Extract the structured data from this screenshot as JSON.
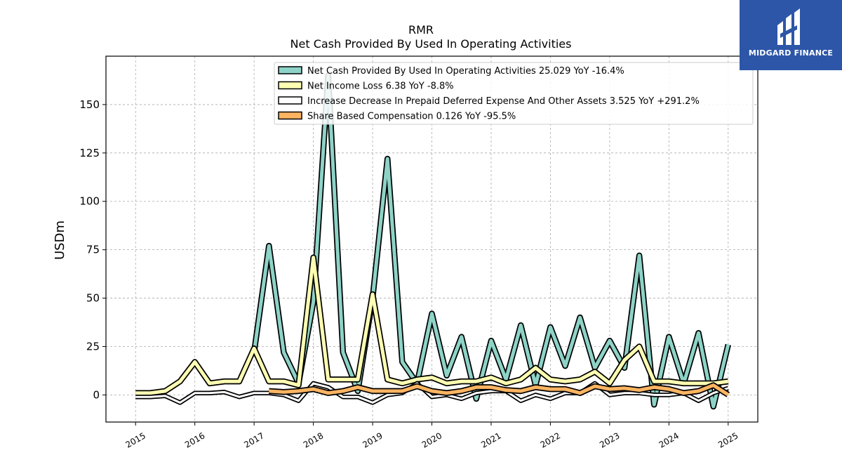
{
  "brand": {
    "name": "MIDGARD FINANCE",
    "color": "#2d56a8"
  },
  "chart_data": {
    "type": "line",
    "title": "RMR",
    "subtitle": "Net Cash Provided By Used In Operating Activities",
    "ylabel": "USDm",
    "xlabel": "",
    "ylim": [
      -14,
      175
    ],
    "xlim": [
      2014.5,
      2025.5
    ],
    "yticks": [
      0,
      25,
      50,
      75,
      100,
      125,
      150
    ],
    "xticks": [
      "2015",
      "2016",
      "2017",
      "2018",
      "2019",
      "2020",
      "2021",
      "2022",
      "2023",
      "2024",
      "2025"
    ],
    "grid": true,
    "legend_position": "top-right",
    "x": [
      2015.0,
      2015.25,
      2015.5,
      2015.75,
      2016.0,
      2016.25,
      2016.5,
      2016.75,
      2017.0,
      2017.25,
      2017.5,
      2017.75,
      2018.0,
      2018.25,
      2018.5,
      2018.75,
      2019.0,
      2019.25,
      2019.5,
      2019.75,
      2020.0,
      2020.25,
      2020.5,
      2020.75,
      2021.0,
      2021.25,
      2021.5,
      2021.75,
      2022.0,
      2022.25,
      2022.5,
      2022.75,
      2023.0,
      2023.25,
      2023.5,
      2023.75,
      2024.0,
      2024.25,
      2024.5,
      2024.75,
      2025.0
    ],
    "series": [
      {
        "name": "Net Cash Provided By Used In Operating Activities",
        "legend": "Net Cash Provided By Used In Operating Activities  25.029 YoY -16.4%",
        "color": "#8dd3c7",
        "lineWidth": 5,
        "values": [
          null,
          null,
          null,
          null,
          null,
          null,
          null,
          null,
          22,
          77,
          22,
          6,
          48,
          165,
          22,
          2,
          50,
          122,
          17,
          6,
          42,
          10,
          30,
          -2,
          28,
          8,
          36,
          5,
          35,
          15,
          40,
          14,
          28,
          14,
          72,
          -5,
          30,
          6,
          32,
          -6,
          26
        ]
      },
      {
        "name": "Net Income Loss",
        "legend": "Net Income Loss  6.38 YoY -8.8%",
        "color": "#ffffb3",
        "lineWidth": 5,
        "values": [
          1,
          1,
          2,
          7,
          17,
          6,
          7,
          7,
          24,
          7,
          7,
          5,
          71,
          8,
          8,
          8,
          52,
          8,
          6,
          8,
          9,
          6,
          7,
          7,
          9,
          6,
          8,
          14,
          8,
          7,
          8,
          12,
          6,
          18,
          25,
          7,
          7,
          6,
          6,
          6,
          7
        ]
      },
      {
        "name": "Increase Decrease In Prepaid Deferred Expense And Other Assets",
        "legend": "Increase Decrease In Prepaid Deferred Expense And Other Assets  3.525 YoY +291.2%",
        "color": "#ffffff",
        "lineWidth": 3,
        "values": [
          -1,
          -1,
          -0.5,
          -4,
          1,
          1,
          1.5,
          -1,
          1,
          1,
          0,
          -3,
          6,
          4,
          -1,
          -1,
          -4,
          0,
          1,
          6,
          -1,
          0,
          -2,
          1,
          2,
          2,
          -3,
          0,
          -2,
          1,
          1,
          6,
          0,
          1,
          1,
          0,
          0,
          1,
          -3,
          1,
          3.5
        ]
      },
      {
        "name": "Share Based Compensation",
        "legend": "Share Based Compensation  0.126 YoY -95.5%",
        "color": "#fdb462",
        "lineWidth": 5,
        "values": [
          null,
          null,
          null,
          null,
          null,
          null,
          null,
          null,
          null,
          2,
          1.5,
          2,
          3,
          1,
          2,
          4,
          2,
          2,
          2,
          4.5,
          2,
          1,
          2,
          4,
          4,
          2.5,
          2,
          4,
          3,
          3,
          1,
          4.5,
          3,
          3.5,
          2.5,
          4,
          3,
          1,
          2,
          5,
          0.1
        ]
      }
    ]
  }
}
